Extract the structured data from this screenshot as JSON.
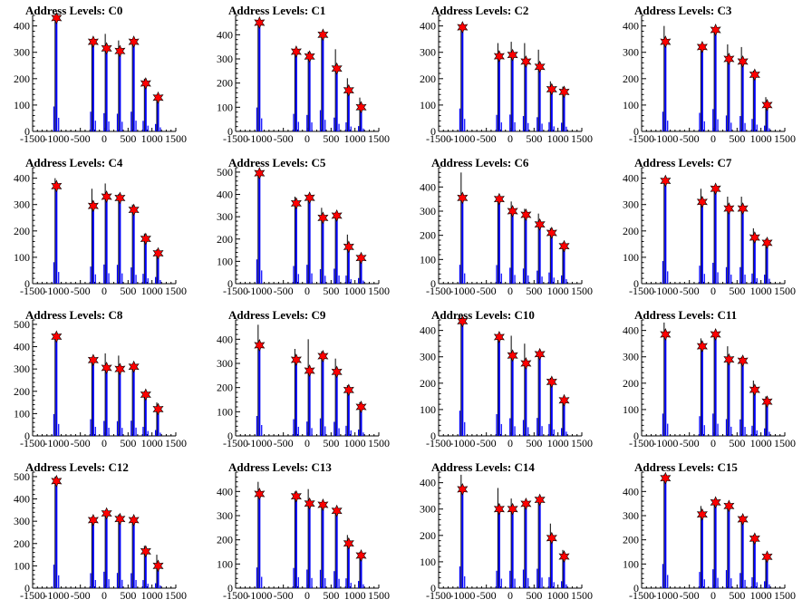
{
  "title_prefix": "Address Levels: ",
  "chart_data": [
    {
      "type": "bar",
      "title": "Address Levels: C0",
      "xlim": [
        -1500,
        1500
      ],
      "ylim": [
        0,
        440
      ],
      "yticks": [
        0,
        100,
        200,
        300,
        400
      ],
      "xticks": [
        -1500,
        -1000,
        -500,
        0,
        500,
        1000,
        1500
      ],
      "levels": [
        {
          "x": -1000,
          "peak": 430,
          "star": 430
        },
        {
          "x": -230,
          "peak": 350,
          "star": 340
        },
        {
          "x": 50,
          "peak": 370,
          "star": 315
        },
        {
          "x": 330,
          "peak": 345,
          "star": 305
        },
        {
          "x": 620,
          "peak": 350,
          "star": 340
        },
        {
          "x": 870,
          "peak": 200,
          "star": 182
        },
        {
          "x": 1130,
          "peak": 140,
          "star": 128
        }
      ]
    },
    {
      "type": "bar",
      "title": "Address Levels: C1",
      "xlim": [
        -1500,
        1500
      ],
      "ylim": [
        0,
        480
      ],
      "yticks": [
        0,
        100,
        200,
        300,
        400
      ],
      "xticks": [
        -1500,
        -1000,
        -500,
        0,
        500,
        1000,
        1500
      ],
      "levels": [
        {
          "x": -1000,
          "peak": 450,
          "star": 450
        },
        {
          "x": -230,
          "peak": 340,
          "star": 330
        },
        {
          "x": 50,
          "peak": 330,
          "star": 310
        },
        {
          "x": 330,
          "peak": 410,
          "star": 400
        },
        {
          "x": 620,
          "peak": 340,
          "star": 260
        },
        {
          "x": 870,
          "peak": 220,
          "star": 170
        },
        {
          "x": 1130,
          "peak": 140,
          "star": 100
        }
      ]
    },
    {
      "type": "bar",
      "title": "Address Levels: C2",
      "xlim": [
        -1500,
        1500
      ],
      "ylim": [
        0,
        440
      ],
      "yticks": [
        0,
        100,
        200,
        300,
        400
      ],
      "xticks": [
        -1500,
        -1000,
        -500,
        0,
        500,
        1000,
        1500
      ],
      "levels": [
        {
          "x": -1000,
          "peak": 400,
          "star": 395
        },
        {
          "x": -230,
          "peak": 335,
          "star": 285
        },
        {
          "x": 50,
          "peak": 340,
          "star": 290
        },
        {
          "x": 330,
          "peak": 335,
          "star": 265
        },
        {
          "x": 620,
          "peak": 310,
          "star": 245
        },
        {
          "x": 870,
          "peak": 190,
          "star": 160
        },
        {
          "x": 1130,
          "peak": 170,
          "star": 150
        }
      ]
    },
    {
      "type": "bar",
      "title": "Address Levels: C3",
      "xlim": [
        -1500,
        1500
      ],
      "ylim": [
        0,
        440
      ],
      "yticks": [
        0,
        100,
        200,
        300,
        400
      ],
      "xticks": [
        -1500,
        -1000,
        -500,
        0,
        500,
        1000,
        1500
      ],
      "levels": [
        {
          "x": -1000,
          "peak": 400,
          "star": 340
        },
        {
          "x": -230,
          "peak": 330,
          "star": 320
        },
        {
          "x": 50,
          "peak": 390,
          "star": 385
        },
        {
          "x": 330,
          "peak": 330,
          "star": 275
        },
        {
          "x": 620,
          "peak": 320,
          "star": 265
        },
        {
          "x": 870,
          "peak": 230,
          "star": 215
        },
        {
          "x": 1130,
          "peak": 130,
          "star": 100
        }
      ]
    },
    {
      "type": "bar",
      "title": "Address Levels: C4",
      "xlim": [
        -1500,
        1500
      ],
      "ylim": [
        0,
        440
      ],
      "yticks": [
        0,
        100,
        200,
        300,
        400
      ],
      "xticks": [
        -1500,
        -1000,
        -500,
        0,
        500,
        1000,
        1500
      ],
      "levels": [
        {
          "x": -1000,
          "peak": 400,
          "star": 370
        },
        {
          "x": -230,
          "peak": 360,
          "star": 295
        },
        {
          "x": 50,
          "peak": 380,
          "star": 330
        },
        {
          "x": 330,
          "peak": 340,
          "star": 325
        },
        {
          "x": 620,
          "peak": 300,
          "star": 280
        },
        {
          "x": 870,
          "peak": 190,
          "star": 170
        },
        {
          "x": 1130,
          "peak": 130,
          "star": 115
        }
      ]
    },
    {
      "type": "bar",
      "title": "Address Levels: C5",
      "xlim": [
        -1500,
        1500
      ],
      "ylim": [
        0,
        520
      ],
      "yticks": [
        0,
        100,
        200,
        300,
        400,
        500
      ],
      "xticks": [
        -1500,
        -1000,
        -500,
        0,
        500,
        1000,
        1500
      ],
      "levels": [
        {
          "x": -1000,
          "peak": 500,
          "star": 495
        },
        {
          "x": -230,
          "peak": 390,
          "star": 360
        },
        {
          "x": 50,
          "peak": 400,
          "star": 385
        },
        {
          "x": 330,
          "peak": 340,
          "star": 295
        },
        {
          "x": 620,
          "peak": 320,
          "star": 305
        },
        {
          "x": 870,
          "peak": 220,
          "star": 165
        },
        {
          "x": 1130,
          "peak": 130,
          "star": 115
        }
      ]
    },
    {
      "type": "bar",
      "title": "Address Levels: C6",
      "xlim": [
        -1500,
        1500
      ],
      "ylim": [
        0,
        480
      ],
      "yticks": [
        0,
        100,
        200,
        300,
        400
      ],
      "xticks": [
        -1500,
        -1000,
        -500,
        0,
        500,
        1000,
        1500
      ],
      "levels": [
        {
          "x": -1000,
          "peak": 460,
          "star": 355
        },
        {
          "x": -230,
          "peak": 360,
          "star": 350
        },
        {
          "x": 50,
          "peak": 340,
          "star": 300
        },
        {
          "x": 330,
          "peak": 310,
          "star": 285
        },
        {
          "x": 620,
          "peak": 290,
          "star": 245
        },
        {
          "x": 870,
          "peak": 230,
          "star": 210
        },
        {
          "x": 1130,
          "peak": 170,
          "star": 155
        }
      ]
    },
    {
      "type": "bar",
      "title": "Address Levels: C7",
      "xlim": [
        -1500,
        1500
      ],
      "ylim": [
        0,
        440
      ],
      "yticks": [
        0,
        100,
        200,
        300,
        400
      ],
      "xticks": [
        -1500,
        -1000,
        -500,
        0,
        500,
        1000,
        1500
      ],
      "levels": [
        {
          "x": -1000,
          "peak": 400,
          "star": 390
        },
        {
          "x": -230,
          "peak": 360,
          "star": 310
        },
        {
          "x": 50,
          "peak": 370,
          "star": 360
        },
        {
          "x": 330,
          "peak": 330,
          "star": 285
        },
        {
          "x": 620,
          "peak": 330,
          "star": 285
        },
        {
          "x": 870,
          "peak": 210,
          "star": 175
        },
        {
          "x": 1130,
          "peak": 170,
          "star": 155
        }
      ]
    },
    {
      "type": "bar",
      "title": "Address Levels: C8",
      "xlim": [
        -1500,
        1500
      ],
      "ylim": [
        0,
        520
      ],
      "yticks": [
        0,
        100,
        200,
        300,
        400,
        500
      ],
      "xticks": [
        -1500,
        -1000,
        -500,
        0,
        500,
        1000,
        1500
      ],
      "levels": [
        {
          "x": -1000,
          "peak": 460,
          "star": 445
        },
        {
          "x": -230,
          "peak": 350,
          "star": 340
        },
        {
          "x": 50,
          "peak": 370,
          "star": 305
        },
        {
          "x": 330,
          "peak": 360,
          "star": 300
        },
        {
          "x": 620,
          "peak": 320,
          "star": 310
        },
        {
          "x": 870,
          "peak": 200,
          "star": 185
        },
        {
          "x": 1130,
          "peak": 150,
          "star": 120
        }
      ]
    },
    {
      "type": "bar",
      "title": "Address Levels: C9",
      "xlim": [
        -1500,
        1500
      ],
      "ylim": [
        0,
        480
      ],
      "yticks": [
        0,
        100,
        200,
        300,
        400
      ],
      "xticks": [
        -1500,
        -1000,
        -500,
        0,
        500,
        1000,
        1500
      ],
      "levels": [
        {
          "x": -1000,
          "peak": 460,
          "star": 375
        },
        {
          "x": -230,
          "peak": 360,
          "star": 315
        },
        {
          "x": 50,
          "peak": 400,
          "star": 270
        },
        {
          "x": 330,
          "peak": 350,
          "star": 330
        },
        {
          "x": 620,
          "peak": 320,
          "star": 265
        },
        {
          "x": 870,
          "peak": 210,
          "star": 190
        },
        {
          "x": 1130,
          "peak": 140,
          "star": 120
        }
      ]
    },
    {
      "type": "bar",
      "title": "Address Levels: C10",
      "xlim": [
        -1500,
        1500
      ],
      "ylim": [
        0,
        440
      ],
      "yticks": [
        0,
        100,
        200,
        300,
        400
      ],
      "xticks": [
        -1500,
        -1000,
        -500,
        0,
        500,
        1000,
        1500
      ],
      "levels": [
        {
          "x": -1000,
          "peak": 440,
          "star": 435
        },
        {
          "x": -230,
          "peak": 380,
          "star": 375
        },
        {
          "x": 50,
          "peak": 380,
          "star": 305
        },
        {
          "x": 330,
          "peak": 350,
          "star": 275
        },
        {
          "x": 620,
          "peak": 320,
          "star": 310
        },
        {
          "x": 870,
          "peak": 220,
          "star": 205
        },
        {
          "x": 1130,
          "peak": 145,
          "star": 135
        }
      ]
    },
    {
      "type": "bar",
      "title": "Address Levels: C11",
      "xlim": [
        -1500,
        1500
      ],
      "ylim": [
        0,
        440
      ],
      "yticks": [
        0,
        100,
        200,
        300,
        400
      ],
      "xticks": [
        -1500,
        -1000,
        -500,
        0,
        500,
        1000,
        1500
      ],
      "levels": [
        {
          "x": -1000,
          "peak": 430,
          "star": 385
        },
        {
          "x": -230,
          "peak": 370,
          "star": 340
        },
        {
          "x": 50,
          "peak": 390,
          "star": 385
        },
        {
          "x": 330,
          "peak": 340,
          "star": 290
        },
        {
          "x": 620,
          "peak": 300,
          "star": 285
        },
        {
          "x": 870,
          "peak": 210,
          "star": 175
        },
        {
          "x": 1130,
          "peak": 150,
          "star": 130
        }
      ]
    },
    {
      "type": "bar",
      "title": "Address Levels: C12",
      "xlim": [
        -1500,
        1500
      ],
      "ylim": [
        0,
        520
      ],
      "yticks": [
        0,
        100,
        200,
        300,
        400,
        500
      ],
      "xticks": [
        -1500,
        -1000,
        -500,
        0,
        500,
        1000,
        1500
      ],
      "levels": [
        {
          "x": -1000,
          "peak": 500,
          "star": 480
        },
        {
          "x": -230,
          "peak": 320,
          "star": 305
        },
        {
          "x": 50,
          "peak": 340,
          "star": 335
        },
        {
          "x": 330,
          "peak": 330,
          "star": 310
        },
        {
          "x": 620,
          "peak": 320,
          "star": 305
        },
        {
          "x": 870,
          "peak": 190,
          "star": 165
        },
        {
          "x": 1130,
          "peak": 150,
          "star": 100
        }
      ]
    },
    {
      "type": "bar",
      "title": "Address Levels: C13",
      "xlim": [
        -1500,
        1500
      ],
      "ylim": [
        0,
        480
      ],
      "yticks": [
        0,
        100,
        200,
        300,
        400
      ],
      "xticks": [
        -1500,
        -1000,
        -500,
        0,
        500,
        1000,
        1500
      ],
      "levels": [
        {
          "x": -1000,
          "peak": 440,
          "star": 390
        },
        {
          "x": -230,
          "peak": 400,
          "star": 380
        },
        {
          "x": 50,
          "peak": 410,
          "star": 350
        },
        {
          "x": 330,
          "peak": 350,
          "star": 345
        },
        {
          "x": 620,
          "peak": 330,
          "star": 320
        },
        {
          "x": 870,
          "peak": 220,
          "star": 185
        },
        {
          "x": 1130,
          "peak": 150,
          "star": 135
        }
      ]
    },
    {
      "type": "bar",
      "title": "Address Levels: C14",
      "xlim": [
        -1500,
        1500
      ],
      "ylim": [
        0,
        440
      ],
      "yticks": [
        0,
        100,
        200,
        300,
        400
      ],
      "xticks": [
        -1500,
        -1000,
        -500,
        0,
        500,
        1000,
        1500
      ],
      "levels": [
        {
          "x": -1000,
          "peak": 430,
          "star": 375
        },
        {
          "x": -230,
          "peak": 380,
          "star": 300
        },
        {
          "x": 50,
          "peak": 340,
          "star": 300
        },
        {
          "x": 330,
          "peak": 330,
          "star": 320
        },
        {
          "x": 620,
          "peak": 340,
          "star": 335
        },
        {
          "x": 870,
          "peak": 245,
          "star": 190
        },
        {
          "x": 1130,
          "peak": 145,
          "star": 120
        }
      ]
    },
    {
      "type": "bar",
      "title": "Address Levels: C15",
      "xlim": [
        -1500,
        1500
      ],
      "ylim": [
        0,
        480
      ],
      "yticks": [
        0,
        100,
        200,
        300,
        400
      ],
      "xticks": [
        -1500,
        -1000,
        -500,
        0,
        500,
        1000,
        1500
      ],
      "levels": [
        {
          "x": -1000,
          "peak": 470,
          "star": 455
        },
        {
          "x": -230,
          "peak": 340,
          "star": 305
        },
        {
          "x": 50,
          "peak": 360,
          "star": 355
        },
        {
          "x": 330,
          "peak": 350,
          "star": 340
        },
        {
          "x": 620,
          "peak": 300,
          "star": 285
        },
        {
          "x": 870,
          "peak": 220,
          "star": 205
        },
        {
          "x": 1130,
          "peak": 140,
          "star": 130
        }
      ]
    }
  ],
  "colors": {
    "bar": "#0000ff",
    "peak_line": "#000000",
    "star_fill": "#ff0000",
    "axis": "#000000"
  }
}
